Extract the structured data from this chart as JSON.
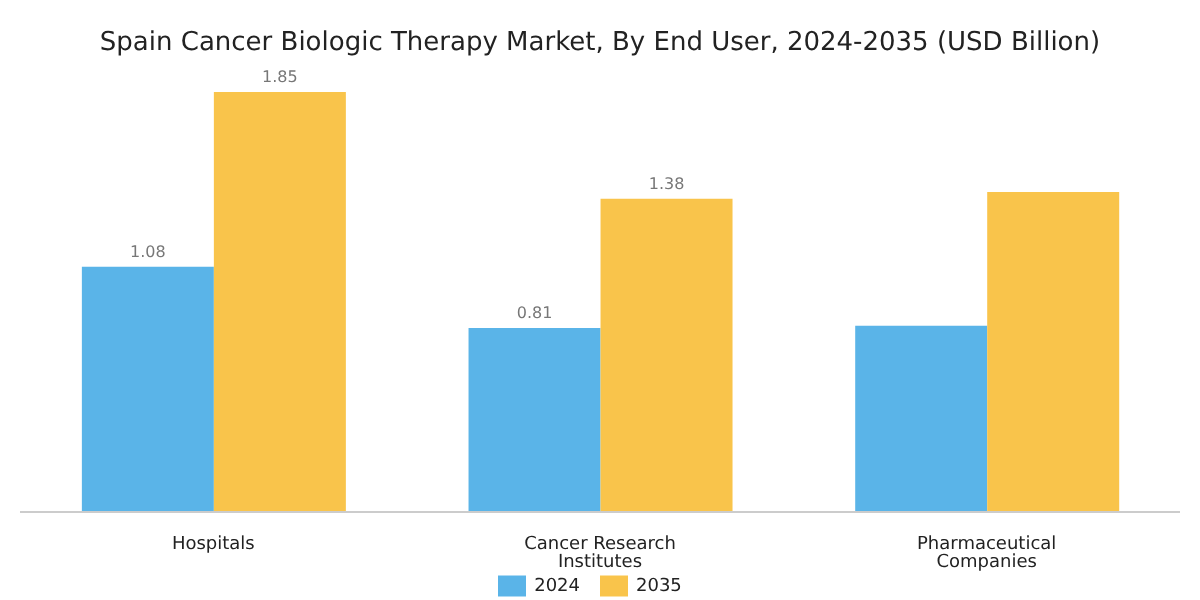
{
  "chart_data": {
    "type": "bar",
    "title": "Spain Cancer Biologic Therapy Market, By End User, 2024-2035 (USD Billion)",
    "categories": [
      "Hospitals",
      "Cancer Research Institutes",
      "Pharmaceutical Companies"
    ],
    "series": [
      {
        "name": "2024",
        "color": "#5ab4e8",
        "values": [
          1.08,
          0.81,
          0.82
        ],
        "value_labels": [
          "1.08",
          "0.81",
          null
        ]
      },
      {
        "name": "2035",
        "color": "#f9c44b",
        "values": [
          1.85,
          1.38,
          1.41
        ],
        "value_labels": [
          "1.85",
          "1.38",
          null
        ]
      }
    ],
    "legend": "bottom",
    "grid": false
  }
}
